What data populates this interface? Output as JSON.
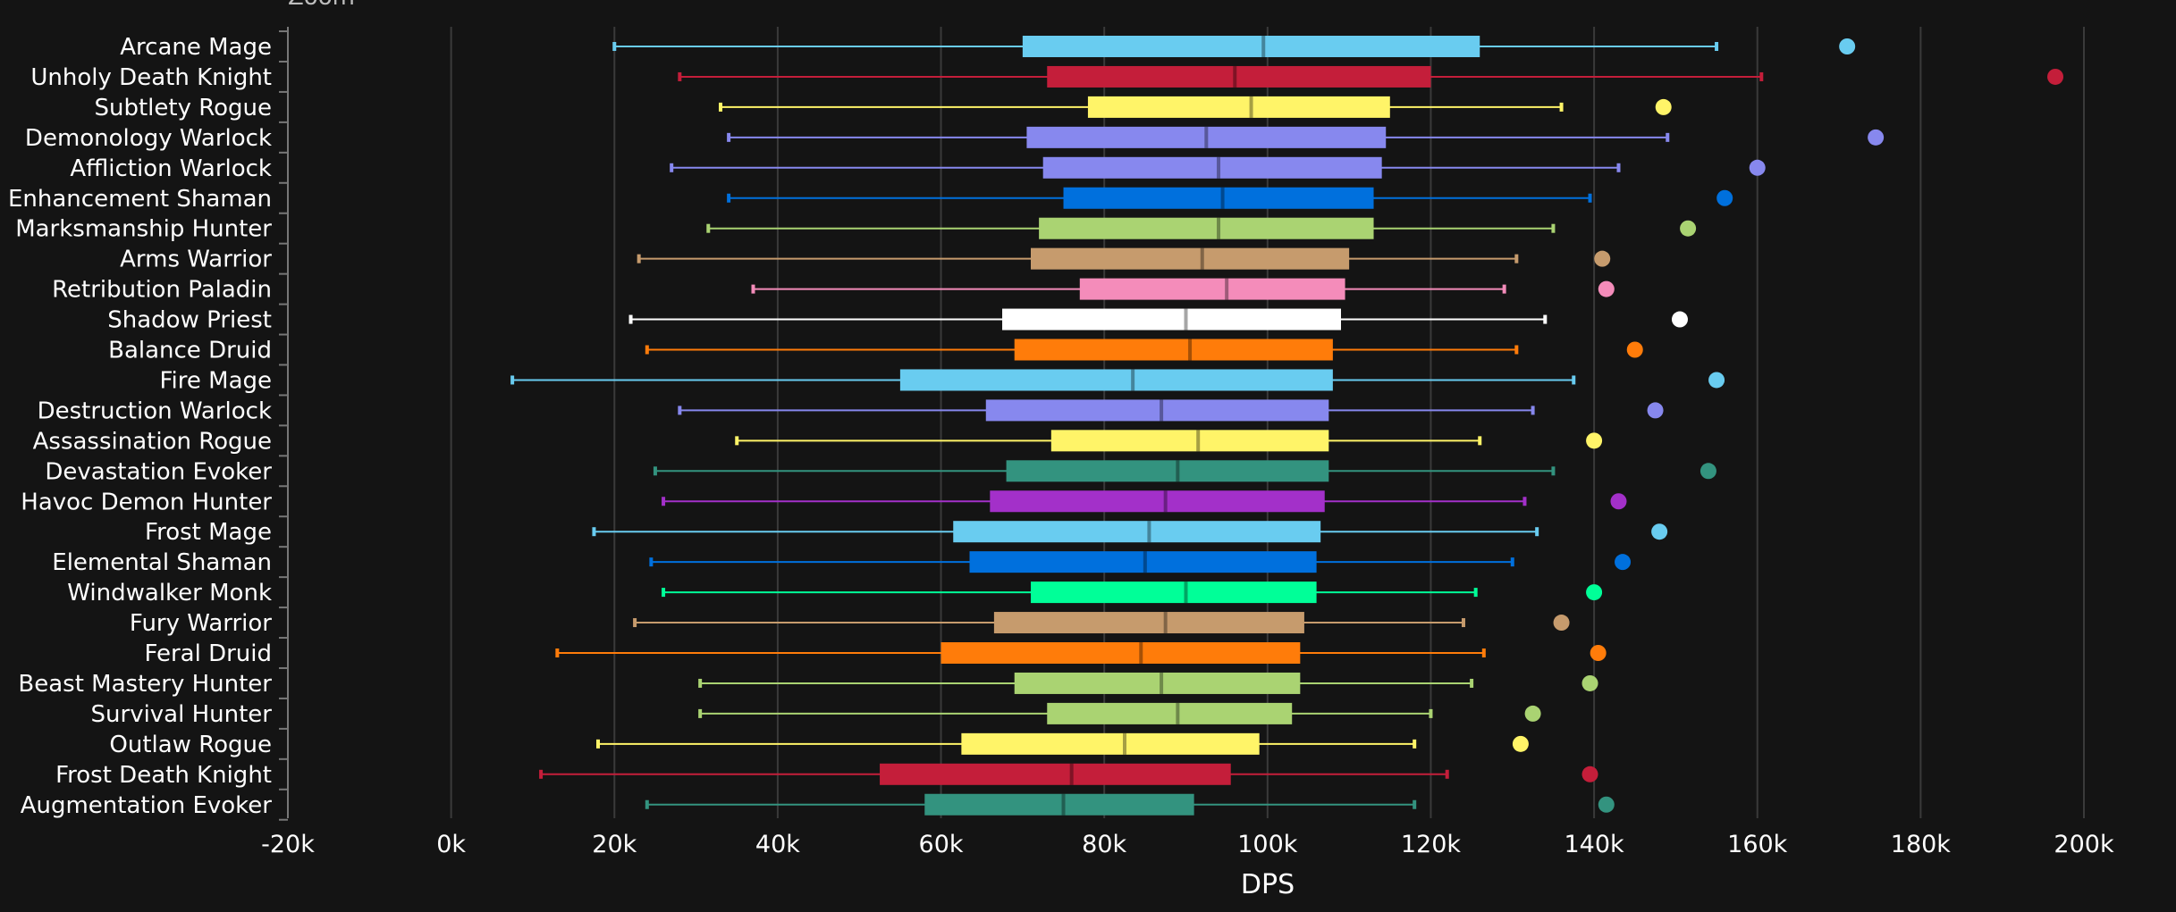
{
  "page": {
    "zoom_label": "Zoom"
  },
  "colors": {
    "background": "#141414",
    "grid": "#3a3a3a",
    "axis": "#777777",
    "text": "#ffffff"
  },
  "chart_data": {
    "type": "box",
    "title": "",
    "xlabel": "DPS",
    "ylabel": "",
    "xlim": [
      -20000,
      200000
    ],
    "xticks": [
      -20000,
      0,
      20000,
      40000,
      60000,
      80000,
      100000,
      120000,
      140000,
      160000,
      180000,
      200000
    ],
    "xtick_labels": [
      "-20k",
      "0k",
      "20k",
      "40k",
      "60k",
      "80k",
      "100k",
      "120k",
      "140k",
      "160k",
      "180k",
      "200k"
    ],
    "grid": "vertical",
    "categories": [
      "Arcane Mage",
      "Unholy Death Knight",
      "Subtlety Rogue",
      "Demonology Warlock",
      "Affliction Warlock",
      "Enhancement Shaman",
      "Marksmanship Hunter",
      "Arms Warrior",
      "Retribution Paladin",
      "Shadow Priest",
      "Balance Druid",
      "Fire Mage",
      "Destruction Warlock",
      "Assassination Rogue",
      "Devastation Evoker",
      "Havoc Demon Hunter",
      "Frost Mage",
      "Elemental Shaman",
      "Windwalker Monk",
      "Fury Warrior",
      "Feral Druid",
      "Beast Mastery Hunter",
      "Survival Hunter",
      "Outlaw Rogue",
      "Frost Death Knight",
      "Augmentation Evoker"
    ],
    "boxes": [
      {
        "name": "Arcane Mage",
        "min": 20000,
        "q1": 70000,
        "median": 99500,
        "q3": 126000,
        "max": 155000,
        "outlier": 171000,
        "color": "#69ccf0"
      },
      {
        "name": "Unholy Death Knight",
        "min": 28000,
        "q1": 73000,
        "median": 96000,
        "q3": 120000,
        "max": 160500,
        "outlier": 196500,
        "color": "#c41e3a"
      },
      {
        "name": "Subtlety Rogue",
        "min": 33000,
        "q1": 78000,
        "median": 98000,
        "q3": 115000,
        "max": 136000,
        "outlier": 148500,
        "color": "#fff468"
      },
      {
        "name": "Demonology Warlock",
        "min": 34000,
        "q1": 70500,
        "median": 92500,
        "q3": 114500,
        "max": 149000,
        "outlier": 174500,
        "color": "#8788ee"
      },
      {
        "name": "Affliction Warlock",
        "min": 27000,
        "q1": 72500,
        "median": 94000,
        "q3": 114000,
        "max": 143000,
        "outlier": 160000,
        "color": "#8788ee"
      },
      {
        "name": "Enhancement Shaman",
        "min": 34000,
        "q1": 75000,
        "median": 94500,
        "q3": 113000,
        "max": 139500,
        "outlier": 156000,
        "color": "#0070dd"
      },
      {
        "name": "Marksmanship Hunter",
        "min": 31500,
        "q1": 72000,
        "median": 94000,
        "q3": 113000,
        "max": 135000,
        "outlier": 151500,
        "color": "#aad372"
      },
      {
        "name": "Arms Warrior",
        "min": 23000,
        "q1": 71000,
        "median": 92000,
        "q3": 110000,
        "max": 130500,
        "outlier": 141000,
        "color": "#c69b6d"
      },
      {
        "name": "Retribution Paladin",
        "min": 37000,
        "q1": 77000,
        "median": 95000,
        "q3": 109500,
        "max": 129000,
        "outlier": 141500,
        "color": "#f48cba"
      },
      {
        "name": "Shadow Priest",
        "min": 22000,
        "q1": 67500,
        "median": 90000,
        "q3": 109000,
        "max": 134000,
        "outlier": 150500,
        "color": "#ffffff"
      },
      {
        "name": "Balance Druid",
        "min": 24000,
        "q1": 69000,
        "median": 90500,
        "q3": 108000,
        "max": 130500,
        "outlier": 145000,
        "color": "#ff7c0a"
      },
      {
        "name": "Fire Mage",
        "min": 7500,
        "q1": 55000,
        "median": 83500,
        "q3": 108000,
        "max": 137500,
        "outlier": 155000,
        "color": "#69ccf0"
      },
      {
        "name": "Destruction Warlock",
        "min": 28000,
        "q1": 65500,
        "median": 87000,
        "q3": 107500,
        "max": 132500,
        "outlier": 147500,
        "color": "#8788ee"
      },
      {
        "name": "Assassination Rogue",
        "min": 35000,
        "q1": 73500,
        "median": 91500,
        "q3": 107500,
        "max": 126000,
        "outlier": 140000,
        "color": "#fff468"
      },
      {
        "name": "Devastation Evoker",
        "min": 25000,
        "q1": 68000,
        "median": 89000,
        "q3": 107500,
        "max": 135000,
        "outlier": 154000,
        "color": "#33937f"
      },
      {
        "name": "Havoc Demon Hunter",
        "min": 26000,
        "q1": 66000,
        "median": 87500,
        "q3": 107000,
        "max": 131500,
        "outlier": 143000,
        "color": "#a330c9"
      },
      {
        "name": "Frost Mage",
        "min": 17500,
        "q1": 61500,
        "median": 85500,
        "q3": 106500,
        "max": 133000,
        "outlier": 148000,
        "color": "#69ccf0"
      },
      {
        "name": "Elemental Shaman",
        "min": 24500,
        "q1": 63500,
        "median": 85000,
        "q3": 106000,
        "max": 130000,
        "outlier": 143500,
        "color": "#0070dd"
      },
      {
        "name": "Windwalker Monk",
        "min": 26000,
        "q1": 71000,
        "median": 90000,
        "q3": 106000,
        "max": 125500,
        "outlier": 140000,
        "color": "#00ff98"
      },
      {
        "name": "Fury Warrior",
        "min": 22500,
        "q1": 66500,
        "median": 87500,
        "q3": 104500,
        "max": 124000,
        "outlier": 136000,
        "color": "#c69b6d"
      },
      {
        "name": "Feral Druid",
        "min": 13000,
        "q1": 60000,
        "median": 84500,
        "q3": 104000,
        "max": 126500,
        "outlier": 140500,
        "color": "#ff7c0a"
      },
      {
        "name": "Beast Mastery Hunter",
        "min": 30500,
        "q1": 69000,
        "median": 87000,
        "q3": 104000,
        "max": 125000,
        "outlier": 139500,
        "color": "#aad372"
      },
      {
        "name": "Survival Hunter",
        "min": 30500,
        "q1": 73000,
        "median": 89000,
        "q3": 103000,
        "max": 120000,
        "outlier": 132500,
        "color": "#aad372"
      },
      {
        "name": "Outlaw Rogue",
        "min": 18000,
        "q1": 62500,
        "median": 82500,
        "q3": 99000,
        "max": 118000,
        "outlier": 131000,
        "color": "#fff468"
      },
      {
        "name": "Frost Death Knight",
        "min": 11000,
        "q1": 52500,
        "median": 76000,
        "q3": 95500,
        "max": 122000,
        "outlier": 139500,
        "color": "#c41e3a"
      },
      {
        "name": "Augmentation Evoker",
        "min": 24000,
        "q1": 58000,
        "median": 75000,
        "q3": 91000,
        "max": 118000,
        "outlier": 141500,
        "color": "#33937f"
      }
    ]
  }
}
